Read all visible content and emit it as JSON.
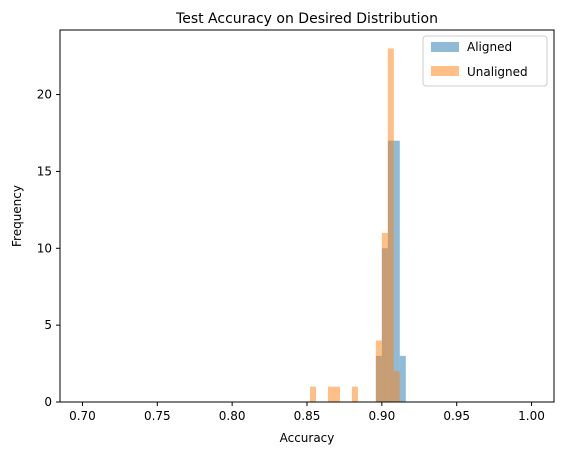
{
  "chart_data": {
    "type": "histogram",
    "title": "Test Accuracy on Desired Distribution",
    "xlabel": "Accuracy",
    "ylabel": "Frequency",
    "xlim": [
      0.685,
      1.015
    ],
    "ylim": [
      0,
      24.2
    ],
    "xticks": [
      {
        "value": 0.7,
        "label": "0.70"
      },
      {
        "value": 0.75,
        "label": "0.75"
      },
      {
        "value": 0.8,
        "label": "0.80"
      },
      {
        "value": 0.85,
        "label": "0.85"
      },
      {
        "value": 0.9,
        "label": "0.90"
      },
      {
        "value": 0.95,
        "label": "0.95"
      },
      {
        "value": 1.0,
        "label": "1.00"
      }
    ],
    "yticks": [
      {
        "value": 0,
        "label": "0"
      },
      {
        "value": 5,
        "label": "5"
      },
      {
        "value": 10,
        "label": "10"
      },
      {
        "value": 15,
        "label": "15"
      },
      {
        "value": 20,
        "label": "20"
      }
    ],
    "bin_start": 0.7,
    "bin_width": 0.004,
    "grid": false,
    "legend_position": "top-right",
    "series": [
      {
        "name": "Aligned",
        "color": "#1f77b4",
        "alpha": 0.5,
        "bins": [
          {
            "x0": 0.896,
            "x1": 0.9,
            "count": 3
          },
          {
            "x0": 0.9,
            "x1": 0.904,
            "count": 10
          },
          {
            "x0": 0.904,
            "x1": 0.908,
            "count": 17
          },
          {
            "x0": 0.908,
            "x1": 0.912,
            "count": 17
          },
          {
            "x0": 0.912,
            "x1": 0.916,
            "count": 3
          }
        ]
      },
      {
        "name": "Unaligned",
        "color": "#ff7f0e",
        "alpha": 0.5,
        "bins": [
          {
            "x0": 0.852,
            "x1": 0.856,
            "count": 1
          },
          {
            "x0": 0.864,
            "x1": 0.868,
            "count": 1
          },
          {
            "x0": 0.868,
            "x1": 0.872,
            "count": 1
          },
          {
            "x0": 0.88,
            "x1": 0.884,
            "count": 1
          },
          {
            "x0": 0.896,
            "x1": 0.9,
            "count": 4
          },
          {
            "x0": 0.9,
            "x1": 0.904,
            "count": 11
          },
          {
            "x0": 0.904,
            "x1": 0.908,
            "count": 23
          },
          {
            "x0": 0.908,
            "x1": 0.912,
            "count": 2
          }
        ]
      }
    ]
  }
}
